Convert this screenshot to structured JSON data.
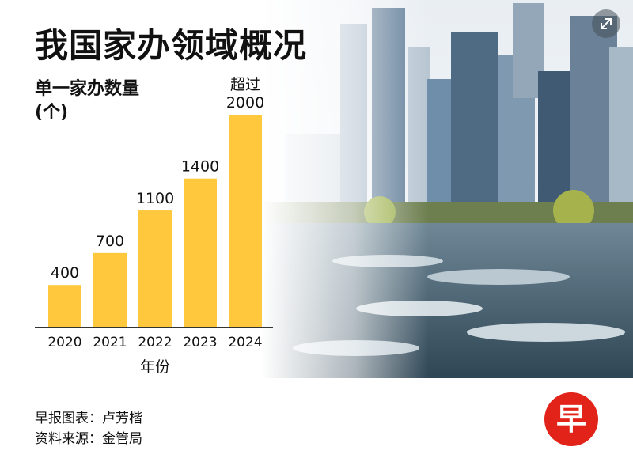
{
  "title": "我国家办领域概况",
  "subtitle": "单一家办数量\n(个)",
  "subtitle_line1": "单一家办数量",
  "subtitle_line2": "(个)",
  "annotation": "超过",
  "credits": [
    "早报图表：卢芳楷",
    "资料来源：金管局"
  ],
  "logo_text": "早",
  "icons": [
    "expand-icon"
  ],
  "colors": {
    "bar": "#FFC83D",
    "axis": "#333333",
    "logo": "#E2231A"
  },
  "chart_data": {
    "type": "bar",
    "title": "我国家办领域概况",
    "ylabel": "单一家办数量 (个)",
    "xlabel": "年份",
    "categories": [
      "2020",
      "2021",
      "2022",
      "2023",
      "2024"
    ],
    "values": [
      400,
      700,
      1100,
      1400,
      2000
    ],
    "value_labels": [
      "400",
      "700",
      "1100",
      "1400",
      "2000"
    ],
    "annotations": [
      {
        "category": "2024",
        "text": "超过"
      }
    ],
    "ylim": [
      0,
      2000
    ],
    "grid": false
  }
}
